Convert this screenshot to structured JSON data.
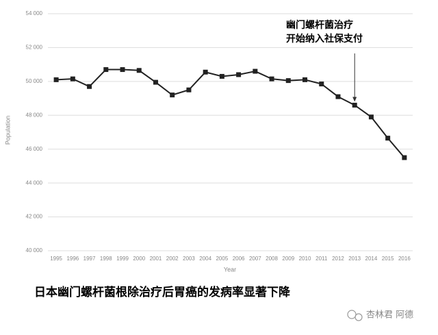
{
  "chart_data": {
    "type": "line",
    "categories": [
      "1995",
      "1996",
      "1997",
      "1998",
      "1999",
      "2000",
      "2001",
      "2002",
      "2003",
      "2004",
      "2005",
      "2006",
      "2007",
      "2008",
      "2009",
      "2010",
      "2011",
      "2012",
      "2013",
      "2014",
      "2015",
      "2016"
    ],
    "series": [
      {
        "color": "#222222",
        "values": [
          50100,
          50150,
          49700,
          50700,
          50700,
          50650,
          49950,
          49200,
          49500,
          50550,
          50300,
          50400,
          50600,
          50150,
          50050,
          50100,
          49850,
          49100,
          48600,
          47900,
          46650,
          45500
        ]
      }
    ],
    "ylim": [
      40000,
      54000
    ],
    "yticks": [
      {
        "value": 40000,
        "label": "40 000"
      },
      {
        "value": 42000,
        "label": "42 000"
      },
      {
        "value": 44000,
        "label": "44 000"
      },
      {
        "value": 46000,
        "label": "46 000"
      },
      {
        "value": 48000,
        "label": "48 000"
      },
      {
        "value": 50000,
        "label": "50 000"
      },
      {
        "value": 52000,
        "label": "52 000"
      },
      {
        "value": 54000,
        "label": "54 000"
      }
    ],
    "grid": true,
    "y_label": "Population",
    "x_label": "Year",
    "annotation": {
      "lines": [
        "幽门螺杆菌治疗",
        "开始纳入社保支付"
      ],
      "category_index": 18
    },
    "caption": "日本幽门螺杆菌根除治疗后胃癌的发病率显著下降",
    "watermark": "杏林君 阿德"
  }
}
